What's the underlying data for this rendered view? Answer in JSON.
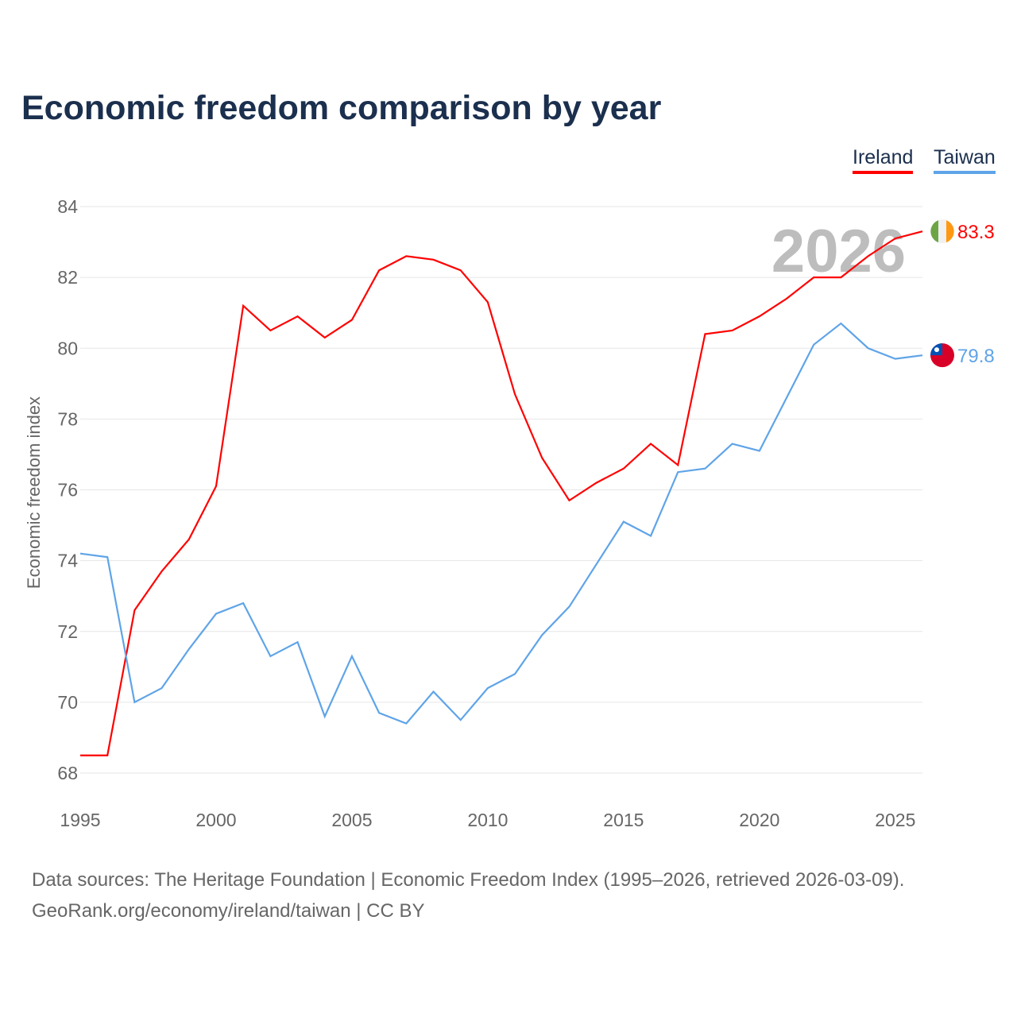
{
  "title": "Economic freedom comparison by year",
  "footer": {
    "line1": "Data sources: The Heritage Foundation | Economic Freedom Index (1995–2026, retrieved 2026-03-09).",
    "line2": "GeoRank.org/economy/ireland/taiwan | CC BY"
  },
  "chart_data": {
    "type": "line",
    "title": "Economic freedom comparison by year",
    "xlabel": "",
    "ylabel": "Economic freedom index",
    "xlim": [
      1995,
      2026
    ],
    "ylim": [
      68,
      84
    ],
    "xticks": [
      1995,
      2000,
      2005,
      2010,
      2015,
      2020,
      2025
    ],
    "yticks": [
      68,
      70,
      72,
      74,
      76,
      78,
      80,
      82,
      84
    ],
    "grid": true,
    "legend": "top-right",
    "annotation": "2026",
    "x": [
      1995,
      1996,
      1997,
      1998,
      1999,
      2000,
      2001,
      2002,
      2003,
      2004,
      2005,
      2006,
      2007,
      2008,
      2009,
      2010,
      2011,
      2012,
      2013,
      2014,
      2015,
      2016,
      2017,
      2018,
      2019,
      2020,
      2021,
      2022,
      2023,
      2024,
      2025,
      2026
    ],
    "series": [
      {
        "name": "Ireland",
        "color": "#ff0000",
        "end_label": "83.3",
        "values": [
          68.5,
          68.5,
          72.6,
          73.7,
          74.6,
          76.1,
          81.2,
          80.5,
          80.9,
          80.3,
          80.8,
          82.2,
          82.6,
          82.5,
          82.2,
          81.3,
          78.7,
          76.9,
          75.7,
          76.2,
          76.6,
          77.3,
          76.7,
          80.4,
          80.5,
          80.9,
          81.4,
          82.0,
          82.0,
          82.6,
          83.1,
          83.3
        ]
      },
      {
        "name": "Taiwan",
        "color": "#5fa4e8",
        "end_label": "79.8",
        "values": [
          74.2,
          74.1,
          70.0,
          70.4,
          71.5,
          72.5,
          72.8,
          71.3,
          71.7,
          69.6,
          71.3,
          69.7,
          69.4,
          70.3,
          69.5,
          70.4,
          70.8,
          71.9,
          72.7,
          73.9,
          75.1,
          74.7,
          76.5,
          76.6,
          77.3,
          77.1,
          78.6,
          80.1,
          80.7,
          80.0,
          79.7,
          79.8
        ]
      }
    ]
  }
}
